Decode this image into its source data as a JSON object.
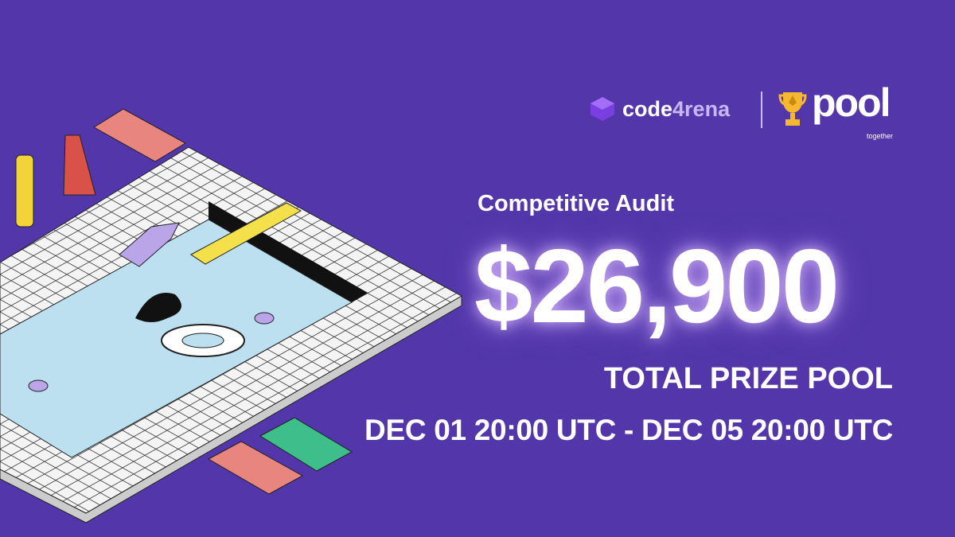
{
  "brand": {
    "code4rena_prefix": "code",
    "code4rena_highlight": "4rena",
    "partner_name": "pool",
    "partner_sub": "together"
  },
  "headline": {
    "subtitle": "Competitive Audit",
    "amount": "$26,900",
    "label": "TOTAL PRIZE POOL",
    "dates": "DEC 01 20:00 UTC - DEC 05 20:00 UTC"
  },
  "colors": {
    "background": "#5236AA",
    "water": "#BDE0F0",
    "mat_pink": "#E8857F",
    "mat_green": "#3DBE8B",
    "trophy": "#F5B82E"
  }
}
